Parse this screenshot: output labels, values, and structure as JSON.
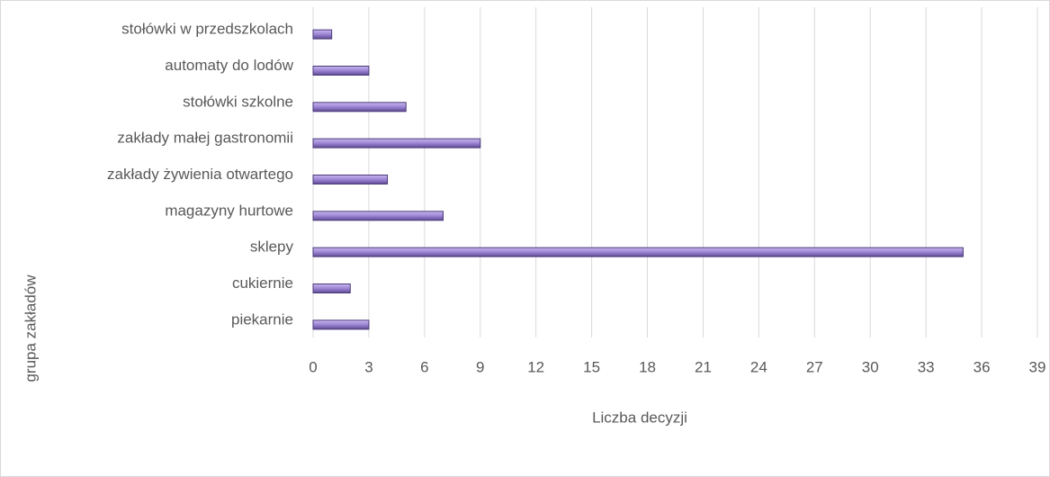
{
  "chart_data": {
    "type": "bar",
    "orientation": "horizontal",
    "x_axis_label": "Liczba decyzji",
    "y_axis_label": "grupa zakładów",
    "categories": [
      "piekarnie",
      "cukiernie",
      "sklepy",
      "magazyny hurtowe",
      "zakłady żywienia otwartego",
      "zakłady małej gastronomii",
      "stołówki szkolne",
      "automaty do lodów",
      "stołówki w przedszkolach"
    ],
    "values": [
      3,
      2,
      35,
      7,
      4,
      9,
      5,
      3,
      1
    ],
    "color": "#9c84d4",
    "xlim": [
      0,
      39
    ],
    "xticks": [
      0,
      3,
      6,
      9,
      12,
      15,
      18,
      21,
      24,
      27,
      30,
      33,
      36,
      39
    ],
    "grid": true
  }
}
